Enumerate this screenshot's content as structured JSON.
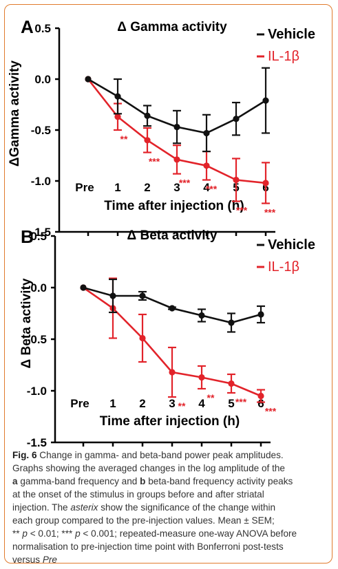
{
  "chart_data": [
    {
      "type": "line",
      "panel": "A",
      "title": "Δ Gamma activity",
      "xlabel": "Time after injection (h)",
      "ylabel": "ΔGamma activity",
      "categories": [
        "Pre",
        "1",
        "2",
        "3",
        "4",
        "5",
        "6"
      ],
      "ylim": [
        -1.5,
        0.5
      ],
      "yticks": [
        "0.5",
        "0.0",
        "-0.5",
        "-1.0",
        "-1.5"
      ],
      "yticks_values": [
        0.5,
        0.0,
        -0.5,
        -1.0,
        -1.5
      ],
      "legend_position": "top-right",
      "series": [
        {
          "name": "Vehicle",
          "color": "#111111",
          "values": [
            0.0,
            -0.17,
            -0.36,
            -0.47,
            -0.53,
            -0.39,
            -0.21
          ],
          "err": [
            0,
            0.17,
            0.1,
            0.16,
            0.18,
            0.16,
            0.32
          ]
        },
        {
          "name": "IL-1β",
          "color": "#e2232a",
          "values": [
            0.0,
            -0.37,
            -0.6,
            -0.79,
            -0.85,
            -0.99,
            -1.02
          ],
          "err": [
            0,
            0.13,
            0.12,
            0.14,
            0.14,
            0.21,
            0.2
          ]
        }
      ],
      "annotations": [
        "**",
        "***",
        "***",
        "***",
        "***",
        "***"
      ]
    },
    {
      "type": "line",
      "panel": "B",
      "title": "Δ Beta activity",
      "xlabel": "Time after injection (h)",
      "ylabel": "Δ Beta activity",
      "categories": [
        "Pre",
        "1",
        "2",
        "3",
        "4",
        "5",
        "6"
      ],
      "ylim": [
        -1.5,
        0.5
      ],
      "yticks": [
        "0.5",
        "0.0",
        "-0.5",
        "-1.0",
        "-1.5"
      ],
      "yticks_values": [
        0.5,
        0.0,
        -0.5,
        -1.0,
        -1.5
      ],
      "legend_position": "top-right",
      "series": [
        {
          "name": "Vehicle",
          "color": "#111111",
          "values": [
            0.0,
            -0.08,
            -0.08,
            -0.2,
            -0.27,
            -0.34,
            -0.26
          ],
          "err": [
            0,
            0.16,
            0.04,
            0.01,
            0.06,
            0.09,
            0.08
          ]
        },
        {
          "name": "IL-1β",
          "color": "#e2232a",
          "values": [
            0.0,
            -0.2,
            -0.49,
            -0.82,
            -0.87,
            -0.93,
            -1.05
          ],
          "err": [
            0,
            0.29,
            0.23,
            0.24,
            0.11,
            0.09,
            0.06
          ]
        }
      ],
      "annotations": [
        "**",
        "**",
        "***",
        "***"
      ]
    }
  ],
  "caption": {
    "fig_label": "Fig. 6",
    "line1": " Change in gamma- and beta-band power peak amplitudes.",
    "line2": "Graphs showing the averaged changes in the log amplitude of the",
    "line3_a": "a",
    "line3_b": " gamma-band frequency and ",
    "line3_c": "b",
    "line3_d": " beta-band frequency activity peaks",
    "line4": "at the onset of the stimulus in groups before and after striatal",
    "line5_a": "injection. The ",
    "line5_b": "asterix",
    "line5_c": " show the significance of the change within",
    "line6": "each group compared to the pre-injection values. Mean ± SEM;",
    "line7_a": "** ",
    "line7_b": "p",
    "line7_c": " < 0.01; *** ",
    "line7_d": "p",
    "line7_e": " < 0.001; repeated-measure one-way ANOVA before",
    "line8": "normalisation to pre-injection time point with Bonferroni post-tests",
    "line9_a": "versus ",
    "line9_b": "Pre"
  }
}
